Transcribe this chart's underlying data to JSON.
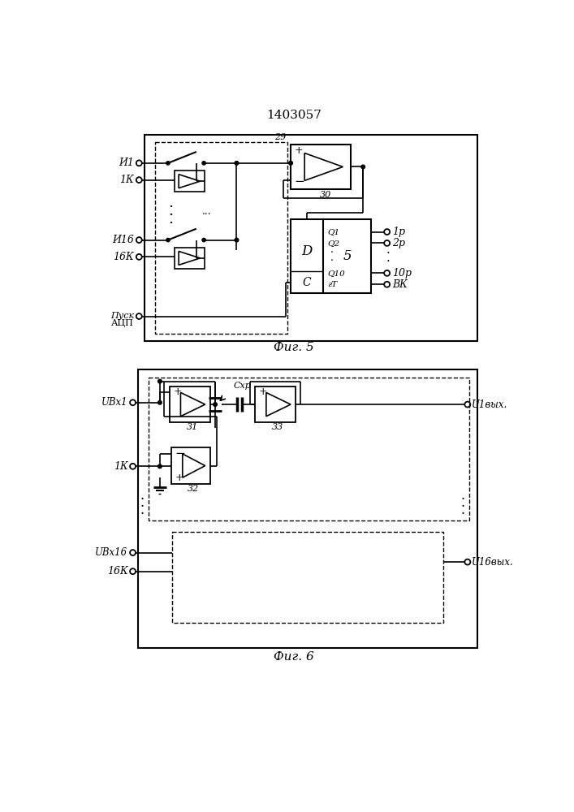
{
  "title": "1403057",
  "fig5_label": "Фиг. 5",
  "fig6_label": "Фиг. 6",
  "bg_color": "#ffffff",
  "line_color": "#000000"
}
